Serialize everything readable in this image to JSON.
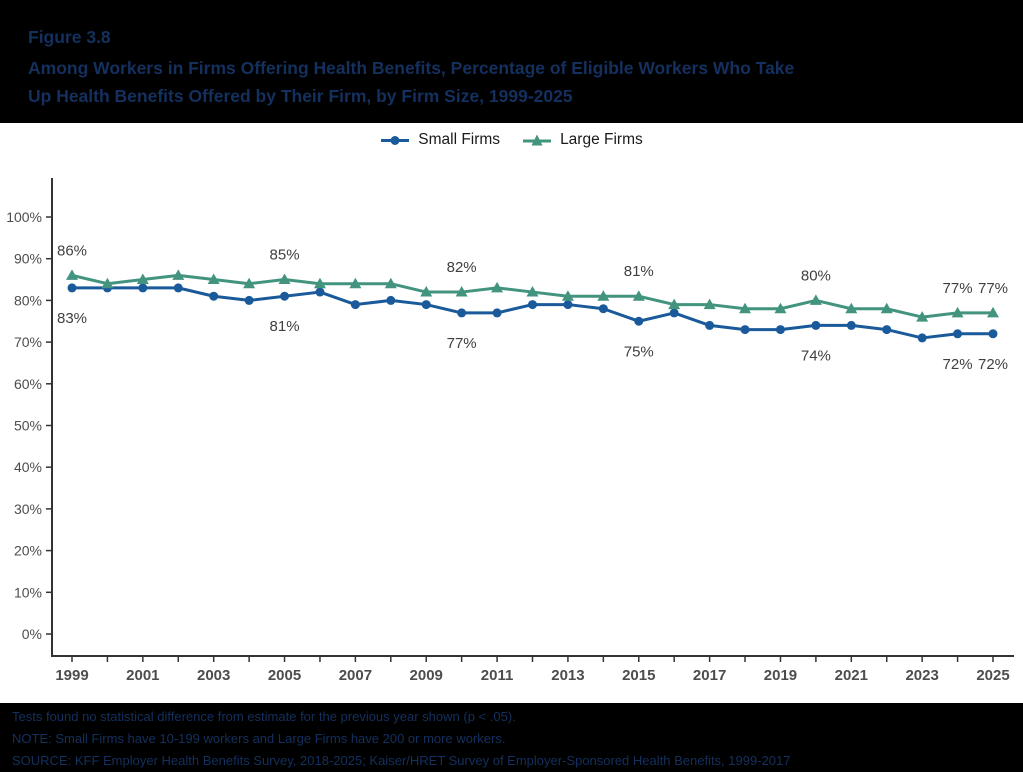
{
  "header": {
    "figure_label": "Figure 3.8",
    "title_line1": "Among Workers in Firms Offering Health Benefits, Percentage of Eligible Workers Who Take",
    "title_line2": "Up Health Benefits Offered by Their Firm, by Firm Size, 1999-2025"
  },
  "colors": {
    "small": "#1a5a9a",
    "large": "#43947f",
    "axis": "#333333",
    "tick_text": "#4d4d4d",
    "header_text": "#14305e",
    "background": "#000000"
  },
  "legend": [
    {
      "label": "Small Firms",
      "marker": "circle",
      "color": "#1a5a9a"
    },
    {
      "label": "Large Firms",
      "marker": "triangle",
      "color": "#43947f"
    }
  ],
  "chart_data": {
    "type": "line",
    "x": [
      1999,
      2000,
      2001,
      2002,
      2003,
      2004,
      2005,
      2006,
      2007,
      2008,
      2009,
      2010,
      2011,
      2012,
      2013,
      2014,
      2015,
      2016,
      2017,
      2018,
      2019,
      2020,
      2021,
      2022,
      2023,
      2024,
      2025
    ],
    "series": [
      {
        "name": "Small Firms",
        "color": "#1a5a9a",
        "marker": "circle",
        "values": [
          83,
          83,
          83,
          83,
          81,
          80,
          81,
          82,
          79,
          80,
          79,
          77,
          77,
          79,
          79,
          78,
          75,
          77,
          74,
          73,
          73,
          74,
          74,
          73,
          71,
          72,
          72
        ]
      },
      {
        "name": "Large Firms",
        "color": "#43947f",
        "marker": "triangle",
        "values": [
          86,
          84,
          85,
          86,
          85,
          84,
          85,
          84,
          84,
          84,
          82,
          82,
          83,
          82,
          81,
          81,
          81,
          79,
          79,
          78,
          78,
          80,
          78,
          78,
          76,
          77,
          77
        ]
      }
    ],
    "ylim": [
      0,
      100
    ],
    "yticks": [
      0,
      10,
      20,
      30,
      40,
      50,
      60,
      70,
      80,
      90,
      100
    ],
    "ytick_suffix": "%",
    "xtick_labels": [
      1999,
      2001,
      2003,
      2005,
      2007,
      2009,
      2011,
      2013,
      2015,
      2017,
      2019,
      2021,
      2023,
      2025
    ],
    "grid": false,
    "legend_position": "top-center",
    "xlabel": "",
    "ylabel": "",
    "annotations": [
      {
        "x": 1999,
        "series": "Large Firms",
        "text": "86%",
        "position": "above"
      },
      {
        "x": 1999,
        "series": "Small Firms",
        "text": "83%",
        "position": "below"
      },
      {
        "x": 2005,
        "series": "Large Firms",
        "text": "85%",
        "position": "above"
      },
      {
        "x": 2005,
        "series": "Small Firms",
        "text": "81%",
        "position": "below"
      },
      {
        "x": 2010,
        "series": "Large Firms",
        "text": "82%",
        "position": "above"
      },
      {
        "x": 2010,
        "series": "Small Firms",
        "text": "77%",
        "position": "below"
      },
      {
        "x": 2015,
        "series": "Large Firms",
        "text": "81%",
        "position": "above"
      },
      {
        "x": 2015,
        "series": "Small Firms",
        "text": "75%",
        "position": "below"
      },
      {
        "x": 2020,
        "series": "Large Firms",
        "text": "80%",
        "position": "above"
      },
      {
        "x": 2020,
        "series": "Small Firms",
        "text": "74%",
        "position": "below"
      },
      {
        "x": 2024,
        "series": "Large Firms",
        "text": "77%",
        "position": "above"
      },
      {
        "x": 2024,
        "series": "Small Firms",
        "text": "72%",
        "position": "below"
      },
      {
        "x": 2025,
        "series": "Large Firms",
        "text": "77%",
        "position": "above"
      },
      {
        "x": 2025,
        "series": "Small Firms",
        "text": "72%",
        "position": "below"
      }
    ]
  },
  "footer": {
    "line1": "Tests found no statistical difference from estimate for the previous year shown (p < .05).",
    "line2": "NOTE: Small Firms have 10-199 workers and Large Firms have 200 or more workers.",
    "line3": "SOURCE: KFF Employer Health Benefits Survey, 2018-2025; Kaiser/HRET Survey of Employer-Sponsored Health Benefits, 1999-2017"
  }
}
